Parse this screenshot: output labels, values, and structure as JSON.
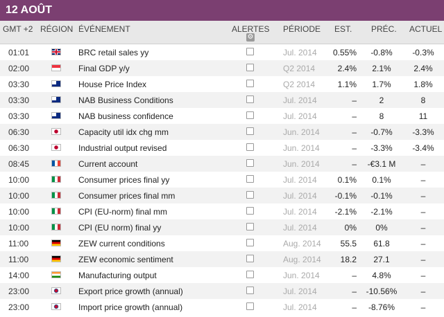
{
  "title": "12 AOÛT",
  "headers": {
    "time": "GMT +2",
    "region": "RÉGION",
    "event": "ÉVÉNEMENT",
    "alerts": "ALERTES",
    "period": "PÉRIODE",
    "est": "EST.",
    "prev": "PRÉC.",
    "actual": "ACTUEL"
  },
  "rows": [
    {
      "time": "01:01",
      "flag": "uk",
      "region": "uk-flag-icon",
      "event": "BRC retail sales yy",
      "period": "Jul. 2014",
      "est": "0.55%",
      "prev": "-0.8%",
      "actual": "-0.3%"
    },
    {
      "time": "02:00",
      "flag": "sg",
      "region": "singapore-flag-icon",
      "event": "Final GDP y/y",
      "period": "Q2 2014",
      "est": "2.4%",
      "prev": "2.1%",
      "actual": "2.4%"
    },
    {
      "time": "03:30",
      "flag": "au",
      "region": "australia-flag-icon",
      "event": "House Price Index",
      "period": "Q2 2014",
      "est": "1.1%",
      "prev": "1.7%",
      "actual": "1.8%"
    },
    {
      "time": "03:30",
      "flag": "au",
      "region": "australia-flag-icon",
      "event": "NAB Business Conditions",
      "period": "Jul. 2014",
      "est": "–",
      "prev": "2",
      "actual": "8"
    },
    {
      "time": "03:30",
      "flag": "au",
      "region": "australia-flag-icon",
      "event": "NAB business confidence",
      "period": "Jul. 2014",
      "est": "–",
      "prev": "8",
      "actual": "11"
    },
    {
      "time": "06:30",
      "flag": "jp",
      "region": "japan-flag-icon",
      "event": "Capacity util idx chg mm",
      "period": "Jun. 2014",
      "est": "–",
      "prev": "-0.7%",
      "actual": "-3.3%"
    },
    {
      "time": "06:30",
      "flag": "jp",
      "region": "japan-flag-icon",
      "event": "Industrial output revised",
      "period": "Jun. 2014",
      "est": "–",
      "prev": "-3.3%",
      "actual": "-3.4%"
    },
    {
      "time": "08:45",
      "flag": "fr",
      "region": "france-flag-icon",
      "event": "Current account",
      "period": "Jun. 2014",
      "est": "–",
      "prev": "-€3.1 M",
      "actual": "–"
    },
    {
      "time": "10:00",
      "flag": "it",
      "region": "italy-flag-icon",
      "event": "Consumer prices final yy",
      "period": "Jul. 2014",
      "est": "0.1%",
      "prev": "0.1%",
      "actual": "–"
    },
    {
      "time": "10:00",
      "flag": "it",
      "region": "italy-flag-icon",
      "event": "Consumer prices final mm",
      "period": "Jul. 2014",
      "est": "-0.1%",
      "prev": "-0.1%",
      "actual": "–"
    },
    {
      "time": "10:00",
      "flag": "it",
      "region": "italy-flag-icon",
      "event": "CPI (EU-norm) final mm",
      "period": "Jul. 2014",
      "est": "-2.1%",
      "prev": "-2.1%",
      "actual": "–"
    },
    {
      "time": "10:00",
      "flag": "it",
      "region": "italy-flag-icon",
      "event": "CPI (EU norm) final yy",
      "period": "Jul. 2014",
      "est": "0%",
      "prev": "0%",
      "actual": "–"
    },
    {
      "time": "11:00",
      "flag": "de",
      "region": "germany-flag-icon",
      "event": "ZEW current conditions",
      "period": "Aug. 2014",
      "est": "55.5",
      "prev": "61.8",
      "actual": "–"
    },
    {
      "time": "11:00",
      "flag": "de",
      "region": "germany-flag-icon",
      "event": "ZEW economic sentiment",
      "period": "Aug. 2014",
      "est": "18.2",
      "prev": "27.1",
      "actual": "–"
    },
    {
      "time": "14:00",
      "flag": "in",
      "region": "india-flag-icon",
      "event": "Manufacturing output",
      "period": "Jun. 2014",
      "est": "–",
      "prev": "4.8%",
      "actual": "–"
    },
    {
      "time": "23:00",
      "flag": "kr",
      "region": "south-korea-flag-icon",
      "event": "Export price growth (annual)",
      "period": "Jul. 2014",
      "est": "–",
      "prev": "-10.56%",
      "actual": "–"
    },
    {
      "time": "23:00",
      "flag": "kr",
      "region": "south-korea-flag-icon",
      "event": "Import price growth (annual)",
      "period": "Jul. 2014",
      "est": "–",
      "prev": "-8.76%",
      "actual": "–"
    }
  ],
  "colors": {
    "banner": "#7b3f71",
    "header_bg": "#e8e8e8",
    "alt_row": "#f2f2f2",
    "period_text": "#aaaaaa"
  }
}
